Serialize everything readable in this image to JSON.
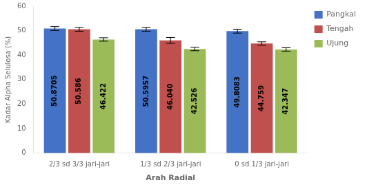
{
  "chart_data": {
    "type": "bar",
    "categories": [
      "2/3 sd 3/3 jari-jari",
      "1/3 sd 2/3 jari-jari",
      "0 sd 1/3 jari-jari"
    ],
    "series": [
      {
        "name": "Pangkal",
        "color": "#4472C4",
        "values": [
          50.8705,
          50.5957,
          49.8083
        ],
        "errors": [
          0.8,
          0.8,
          0.8
        ],
        "value_labels": [
          "50.8705",
          "50.5957",
          "49.8083"
        ]
      },
      {
        "name": "Tengah",
        "color": "#C0504D",
        "values": [
          50.586,
          46.04,
          44.759
        ],
        "errors": [
          0.8,
          1.2,
          0.7
        ],
        "value_labels": [
          "50.586",
          "46.040",
          "44.759"
        ]
      },
      {
        "name": "Ujung",
        "color": "#9BBB59",
        "values": [
          46.422,
          42.526,
          42.347
        ],
        "errors": [
          0.7,
          0.7,
          0.7
        ],
        "value_labels": [
          "46.422",
          "42.526",
          "42.347"
        ]
      }
    ],
    "xlabel": "Arah Radial",
    "ylabel": "Kadar Alpha Selulosa (%)",
    "ylim": [
      0,
      60
    ],
    "yticks": [
      0,
      10,
      20,
      30,
      40,
      50,
      60
    ],
    "grid": false,
    "legend": "right",
    "data_labels": true
  }
}
